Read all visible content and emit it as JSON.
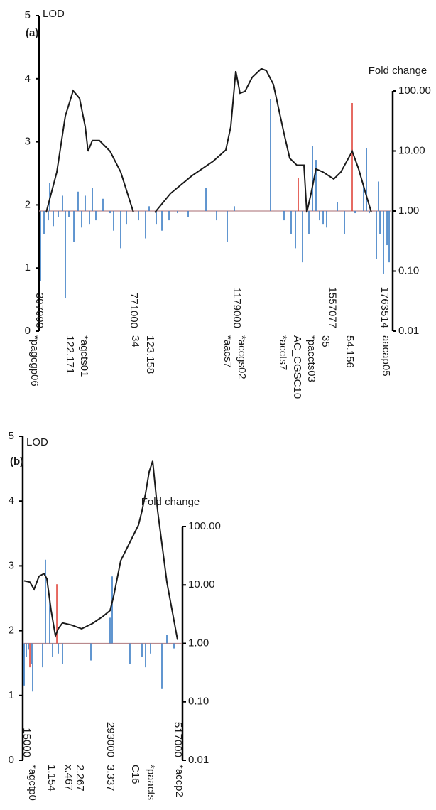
{
  "chart_data": [
    {
      "type": "line",
      "panel_label": "(a)",
      "y_label": "LOD",
      "y2_label": "Fold change",
      "ylim": [
        0,
        5
      ],
      "yticks": [
        0,
        1,
        2,
        3,
        4,
        5
      ],
      "y2lim": [
        0.01,
        100
      ],
      "y2_log": true,
      "y2ticks": [
        {
          "value": 0.01,
          "label": "0.01"
        },
        {
          "value": 0.1,
          "label": "0.10"
        },
        {
          "value": 1,
          "label": "1.00"
        },
        {
          "value": 10,
          "label": "10.00"
        },
        {
          "value": 100,
          "label": "100.00"
        }
      ],
      "xlim": [
        397000,
        1788600
      ],
      "xticks": [
        397000,
        771000,
        1179000,
        1557077,
        1763514
      ],
      "lod": {
        "color": "#1a1a1a",
        "x": [
          425100,
          467300,
          501000,
          531900,
          557300,
          579700,
          591000,
          607900,
          636000,
          678100,
          720300,
          770900,
          null,
          855300,
          917100,
          1001500,
          1085800,
          1136400,
          1156100,
          1175800,
          1192700,
          1212300,
          1240400,
          1277000,
          1296700,
          1324800,
          1367000,
          1389400,
          1417600,
          1445700,
          1456900,
          1473800,
          1493500,
          1521600,
          1563700,
          1591800,
          1636800,
          1662100,
          1690200,
          1712600
        ],
        "values": [
          1.88,
          2.52,
          3.41,
          3.81,
          3.69,
          3.24,
          2.85,
          3.02,
          3.02,
          2.85,
          2.52,
          1.88,
          null,
          1.88,
          2.18,
          2.46,
          2.69,
          2.87,
          3.24,
          4.12,
          3.77,
          3.8,
          4.02,
          4.16,
          4.13,
          3.91,
          3.13,
          2.74,
          2.63,
          2.63,
          1.88,
          2.18,
          2.57,
          2.52,
          2.41,
          2.52,
          2.85,
          2.57,
          2.18,
          1.88
        ]
      },
      "fold_change": {
        "color": "#3a7cc4",
        "axis": "y2",
        "x": [
          402600,
          416700,
          433500,
          439200,
          453300,
          472900,
          489800,
          501000,
          515100,
          534800,
          551600,
          565700,
          579700,
          596600,
          607900,
          621900,
          650000,
          678100,
          692200,
          720300,
          742800,
          790600,
          818700,
          832800,
          860900,
          883400,
          911500,
          945200,
          987400,
          1057700,
          1099900,
          1142000,
          1170100,
          1313500,
          1366900,
          1395000,
          1411900,
          1440000,
          1465300,
          1479400,
          1493400,
          1507500,
          1521600,
          1535600,
          1577800,
          1605900,
          1648100,
          1681800,
          1693100,
          1704300,
          1732400,
          1740800,
          1746500,
          1760500,
          1774600,
          1783000
        ],
        "values": [
          0.069,
          0.41,
          0.7,
          2.9,
          0.56,
          0.8,
          1.8,
          0.035,
          0.8,
          0.31,
          2.1,
          0.53,
          1.8,
          0.61,
          2.4,
          0.7,
          1.6,
          0.92,
          0.47,
          0.24,
          0.61,
          0.7,
          0.35,
          1.2,
          0.61,
          0.47,
          0.7,
          0.92,
          0.8,
          2.4,
          0.7,
          0.31,
          1.2,
          72,
          0.7,
          0.41,
          0.24,
          0.14,
          0.41,
          12,
          7.1,
          0.7,
          0.61,
          0.53,
          1.4,
          0.41,
          0.92,
          2.7,
          11,
          0.92,
          0.16,
          3.1,
          0.41,
          0.091,
          0.27,
          0.14
        ]
      },
      "fold_change_highlight": {
        "color": "#e0463c",
        "axis": "y2",
        "x": [
          1423200,
          1636800
        ],
        "values": [
          3.6,
          63
        ]
      },
      "marker_labels": [
        "*pagcgp06",
        "122.171",
        "*agcts01",
        "34",
        "123.158",
        "*aacs7",
        "*accgs02",
        "*accts7",
        "AC_CGSC10",
        "*paccts03",
        "35",
        "54.156",
        "aacap05"
      ]
    },
    {
      "type": "line",
      "panel_label": "(b)",
      "y_label": "LOD",
      "y2_label": "Fold change",
      "ylim": [
        0,
        5
      ],
      "yticks": [
        0,
        1,
        2,
        3,
        4,
        5
      ],
      "y2lim": [
        0.01,
        100
      ],
      "y2_log": true,
      "y2ticks": [
        {
          "value": 0.01,
          "label": "0.01"
        },
        {
          "value": 0.1,
          "label": "0.10"
        },
        {
          "value": 1,
          "label": "1.00"
        },
        {
          "value": 10,
          "label": "10.00"
        },
        {
          "value": 100,
          "label": "100.00"
        }
      ],
      "xlim": [
        3200,
        531200
      ],
      "xticks": [
        15000,
        293000,
        517000
      ],
      "lod": {
        "color": "#1a1a1a",
        "x": [
          7900,
          26800,
          40900,
          57400,
          73900,
          83400,
          97500,
          111600,
          121100,
          135200,
          163500,
          198800,
          234200,
          269600,
          293100,
          304900,
          328500,
          363800,
          387400,
          399200,
          411000,
          422800,
          434500,
          451000,
          481700,
          517000
        ],
        "values": [
          2.77,
          2.75,
          2.64,
          2.84,
          2.88,
          2.8,
          2.31,
          1.92,
          2.03,
          2.12,
          2.09,
          2.03,
          2.11,
          2.22,
          2.31,
          2.53,
          3.08,
          3.41,
          3.63,
          3.85,
          4.12,
          4.45,
          4.62,
          3.85,
          2.75,
          1.86
        ]
      },
      "fold_change": {
        "color": "#3a7cc4",
        "axis": "y2",
        "x": [
          7900,
          15000,
          22100,
          31500,
          36200,
          69200,
          78600,
          92800,
          102200,
          121100,
          135200,
          229500,
          293100,
          300200,
          359100,
          399200,
          411000,
          427500,
          465200,
          481700,
          505300
        ],
        "values": [
          0.19,
          0.59,
          0.78,
          0.44,
          0.15,
          0.39,
          27,
          5.5,
          0.59,
          0.67,
          0.44,
          0.51,
          2.75,
          14,
          0.44,
          0.59,
          0.39,
          0.67,
          0.17,
          1.4,
          0.82
        ]
      },
      "fold_change_highlight": {
        "color": "#e0463c",
        "axis": "y2",
        "x": [
          26800,
          116400
        ],
        "values": [
          0.39,
          10.3
        ]
      },
      "marker_labels": [
        "*agctp0",
        "1.154",
        "x.467",
        "2.267",
        "3.337",
        "C16",
        "*paacts",
        "*accp2"
      ]
    }
  ]
}
